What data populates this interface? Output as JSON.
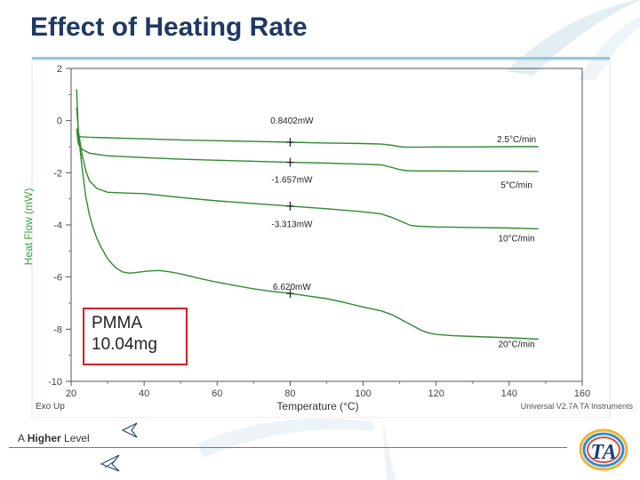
{
  "slide": {
    "title": "Effect of Heating Rate",
    "tagline_prefix": "A ",
    "tagline_bold": "Higher",
    "tagline_suffix": " Level",
    "logo_text": "TA"
  },
  "annotation_box": {
    "line1": "PMMA",
    "line2": "10.04mg"
  },
  "colors": {
    "title": "#1f3864",
    "curve": "#2e8b2e",
    "axis_label": "#3aa33a",
    "box_border": "#d42020",
    "rule": "#8fc9dc"
  },
  "chart_data": {
    "type": "line",
    "xlabel": "Temperature (°C)",
    "ylabel": "Heat Flow (mW)",
    "xlim": [
      20,
      160
    ],
    "ylim": [
      -10,
      2
    ],
    "x_ticks": [
      "20",
      "40",
      "60",
      "80",
      "100",
      "120",
      "140",
      "160"
    ],
    "y_ticks": [
      "2",
      "0",
      "-2",
      "-4",
      "-6",
      "-8",
      "-10"
    ],
    "exo_label": "Exo Up",
    "instrument_label": "Universal V2.7A TA Instruments",
    "series": [
      {
        "name": "2.5°C/min",
        "x": [
          21.5,
          22,
          23,
          25,
          30,
          40,
          50,
          60,
          70,
          80,
          90,
          100,
          105,
          108,
          110,
          112,
          115,
          120,
          130,
          140,
          148
        ],
        "y": [
          -0.5,
          -0.6,
          -0.62,
          -0.64,
          -0.66,
          -0.7,
          -0.74,
          -0.77,
          -0.8,
          -0.83,
          -0.86,
          -0.88,
          -0.9,
          -0.95,
          -1.0,
          -1.02,
          -1.02,
          -1.01,
          -1.01,
          -1.0,
          -1.0
        ]
      },
      {
        "name": "5°C/min",
        "x": [
          21.5,
          22,
          23,
          25,
          30,
          40,
          50,
          60,
          70,
          80,
          90,
          100,
          105,
          108,
          110,
          112,
          115,
          120,
          130,
          140,
          148
        ],
        "y": [
          -0.3,
          -0.9,
          -1.1,
          -1.25,
          -1.35,
          -1.42,
          -1.48,
          -1.52,
          -1.56,
          -1.6,
          -1.63,
          -1.67,
          -1.7,
          -1.8,
          -1.88,
          -1.92,
          -1.93,
          -1.93,
          -1.94,
          -1.94,
          -1.95
        ]
      },
      {
        "name": "10°C/min",
        "x": [
          21.5,
          22,
          23,
          24,
          25,
          27,
          30,
          35,
          40,
          50,
          60,
          70,
          80,
          90,
          100,
          105,
          108,
          111,
          113,
          115,
          120,
          130,
          140,
          148
        ],
        "y": [
          0.5,
          -0.4,
          -1.3,
          -1.9,
          -2.3,
          -2.6,
          -2.75,
          -2.78,
          -2.8,
          -2.95,
          -3.08,
          -3.18,
          -3.28,
          -3.38,
          -3.5,
          -3.58,
          -3.72,
          -3.9,
          -4.02,
          -4.05,
          -4.08,
          -4.1,
          -4.12,
          -4.15
        ]
      },
      {
        "name": "20°C/min",
        "x": [
          21.5,
          22,
          23,
          24,
          25,
          26,
          27,
          28,
          30,
          32,
          34,
          36,
          38,
          41,
          44,
          47,
          50,
          55,
          60,
          65,
          70,
          75,
          80,
          85,
          90,
          95,
          100,
          105,
          108,
          110,
          112,
          114,
          116,
          118,
          120,
          125,
          130,
          140,
          148
        ],
        "y": [
          1.2,
          -0.5,
          -1.8,
          -2.9,
          -3.6,
          -4.1,
          -4.5,
          -4.8,
          -5.3,
          -5.62,
          -5.8,
          -5.85,
          -5.82,
          -5.77,
          -5.75,
          -5.8,
          -5.88,
          -6.05,
          -6.2,
          -6.33,
          -6.45,
          -6.55,
          -6.63,
          -6.73,
          -6.83,
          -6.98,
          -7.15,
          -7.3,
          -7.45,
          -7.6,
          -7.75,
          -7.9,
          -8.05,
          -8.15,
          -8.2,
          -8.25,
          -8.28,
          -8.33,
          -8.38
        ]
      }
    ],
    "annotations": [
      {
        "text": "0.8402mW",
        "x": 80,
        "y": 0.02,
        "mark_y": -0.83
      },
      {
        "text": "-1.657mW",
        "x": 80,
        "y": -2.25,
        "mark_y": -1.6
      },
      {
        "text": "-3.313mW",
        "x": 80,
        "y": -3.95,
        "mark_y": -3.28
      },
      {
        "text": "6.620mW",
        "x": 80,
        "y": -6.35,
        "mark_y": -6.63
      }
    ],
    "rate_labels": [
      {
        "text": "2.5°C/min",
        "x": 142,
        "y": -0.7
      },
      {
        "text": "5°C/min",
        "x": 142,
        "y": -2.45
      },
      {
        "text": "10°C/min",
        "x": 142,
        "y": -4.5
      },
      {
        "text": "20°C/min",
        "x": 142,
        "y": -8.55
      }
    ]
  }
}
